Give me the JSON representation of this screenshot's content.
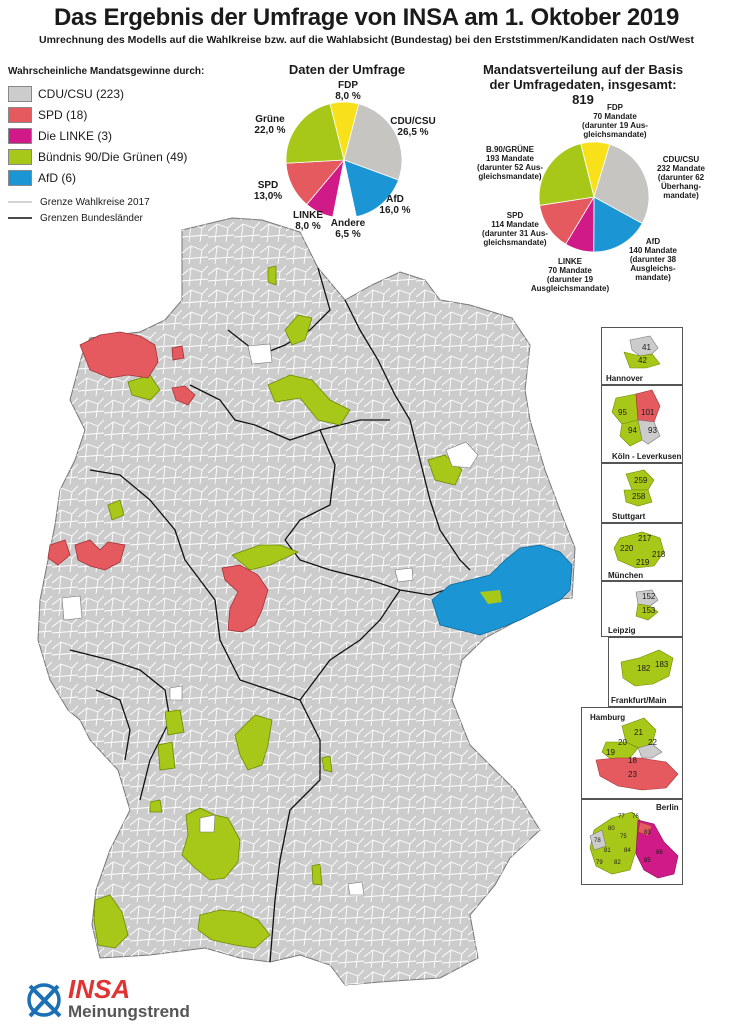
{
  "header": {
    "title": "Das Ergebnis der Umfrage von INSA am 1. Oktober 2019",
    "subtitle": "Umrechnung des Modells auf die Wahlkreise bzw. auf die Wahlabsicht (Bundestag) bei den Erststimmen/Kandidaten nach Ost/West"
  },
  "legend": {
    "heading": "Wahrscheinliche Mandatsgewinne durch:",
    "items": [
      {
        "label": "CDU/CSU (223)",
        "color": "#cccccc"
      },
      {
        "label": "SPD (18)",
        "color": "#e55a5f"
      },
      {
        "label": "Die LINKE (3)",
        "color": "#cf1a87"
      },
      {
        "label": "Bündnis 90/Die Grünen (49)",
        "color": "#a8c819"
      },
      {
        "label": "AfD (6)",
        "color": "#1b95d4"
      }
    ],
    "lines": [
      {
        "label": "Grenze Wahlkreise 2017",
        "color": "#bbbbbb"
      },
      {
        "label": "Grenzen Bundesländer",
        "color": "#111111"
      }
    ]
  },
  "poll_chart": {
    "title": "Daten der Umfrage",
    "labels": {
      "fdp": "FDP\n8,0 %",
      "cdu": "CDU/CSU\n26,5 %",
      "afd": "AfD\n16,0 %",
      "andere": "Andere\n6,5 %",
      "linke": "LINKE\n8,0 %",
      "spd": "SPD\n13,0%",
      "gruene": "Grüne\n22,0 %"
    }
  },
  "seat_chart": {
    "title_line1": "Mandatsverteilung auf der Basis",
    "title_line2": "der Umfragedaten, insgesamt: 819",
    "labels": {
      "fdp": "FDP\n70 Mandate\n(darunter 19 Aus-\ngleichsmandate)",
      "cdu": "CDU/CSU\n232 Mandate\n(darunter 62\nÜberhang-\nmandate)",
      "afd": "AfD\n140 Mandate\n(darunter 38\nAusgleichs-\nmandate)",
      "linke": "LINKE\n70 Mandate\n(darunter 19\nAusgleichsmandate)",
      "spd": "SPD\n114 Mandate\n(darunter 31 Aus-\ngleichsmandate)",
      "gruene": "B.90/GRÜNE\n193 Mandate\n(darunter 52 Aus-\ngleichsmandate)"
    }
  },
  "chart_data": [
    {
      "type": "pie",
      "title": "Daten der Umfrage",
      "categories": [
        "FDP",
        "CDU/CSU",
        "AfD",
        "Andere",
        "LINKE",
        "SPD",
        "Grüne"
      ],
      "values": [
        8.0,
        26.5,
        16.0,
        6.5,
        8.0,
        13.0,
        22.0
      ],
      "colors": [
        "#f8e11b",
        "#c7c5c2",
        "#1b95d4",
        "#ffffff",
        "#cf1a87",
        "#e55a5f",
        "#a8c819"
      ]
    },
    {
      "type": "pie",
      "title": "Mandatsverteilung auf der Basis der Umfragedaten, insgesamt: 819",
      "categories": [
        "FDP",
        "CDU/CSU",
        "AfD",
        "LINKE",
        "SPD",
        "B.90/GRÜNE"
      ],
      "values": [
        70,
        232,
        140,
        70,
        114,
        193
      ],
      "colors": [
        "#f8e11b",
        "#c7c5c2",
        "#1b95d4",
        "#cf1a87",
        "#e55a5f",
        "#a8c819"
      ]
    }
  ],
  "insets": [
    {
      "caption": "Hannover",
      "numbers": [
        "41",
        "42"
      ]
    },
    {
      "caption": "Köln -  Leverkusen",
      "numbers": [
        "95",
        "101",
        "94",
        "93"
      ]
    },
    {
      "caption": "Stuttgart",
      "numbers": [
        "259",
        "258"
      ]
    },
    {
      "caption": "München",
      "numbers": [
        "217",
        "220",
        "218",
        "219"
      ]
    },
    {
      "caption": "Leipzig",
      "numbers": [
        "152",
        "153"
      ]
    },
    {
      "caption": "Frankfurt/Main",
      "numbers": [
        "182",
        "183"
      ]
    },
    {
      "caption": "Hamburg",
      "numbers": [
        "21",
        "20",
        "22",
        "19",
        "18",
        "23"
      ]
    },
    {
      "caption": "Berlin",
      "numbers": [
        "77",
        "76",
        "78",
        "80",
        "75",
        "81",
        "84",
        "79",
        "82",
        "83",
        "86",
        "85"
      ]
    }
  ],
  "logo": {
    "brand": "INSA",
    "tagline": "Meinungstrend"
  }
}
